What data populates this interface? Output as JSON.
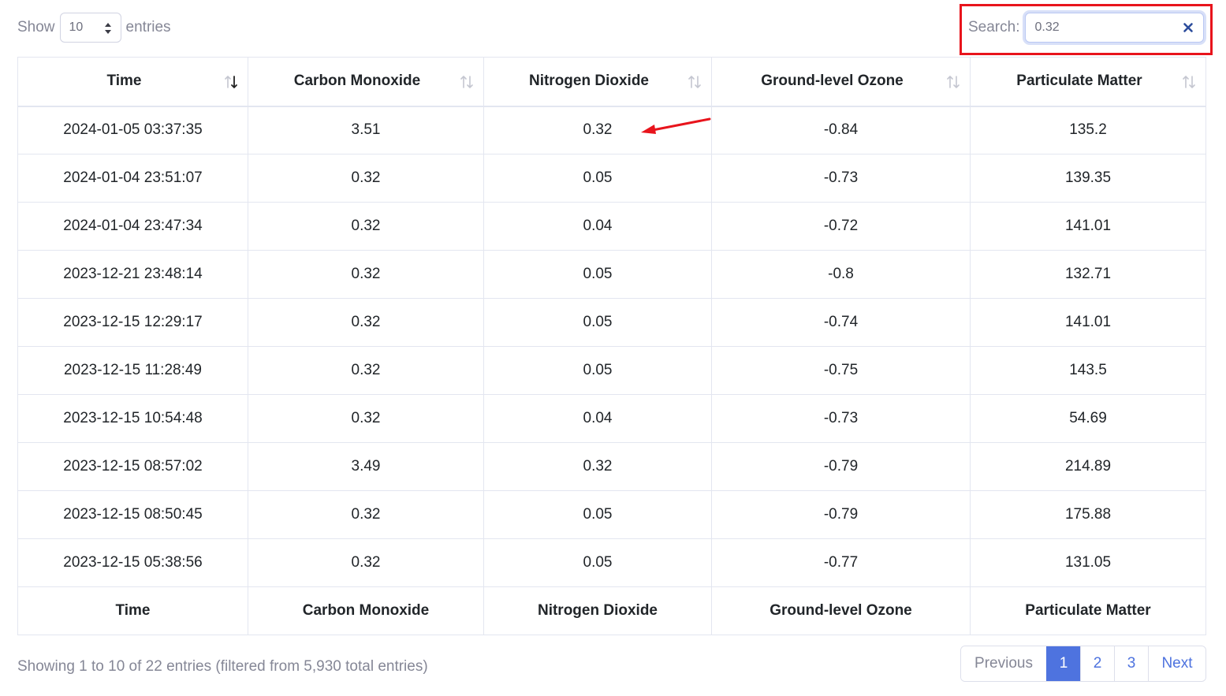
{
  "length_control": {
    "show_label": "Show",
    "selected": "10",
    "entries_label": "entries"
  },
  "search": {
    "label": "Search:",
    "value": "0.32"
  },
  "table": {
    "columns": [
      "Time",
      "Carbon Monoxide",
      "Nitrogen Dioxide",
      "Ground-level Ozone",
      "Particulate Matter"
    ],
    "rows": [
      [
        "2024-01-05 03:37:35",
        "3.51",
        "0.32",
        "-0.84",
        "135.2"
      ],
      [
        "2024-01-04 23:51:07",
        "0.32",
        "0.05",
        "-0.73",
        "139.35"
      ],
      [
        "2024-01-04 23:47:34",
        "0.32",
        "0.04",
        "-0.72",
        "141.01"
      ],
      [
        "2023-12-21 23:48:14",
        "0.32",
        "0.05",
        "-0.8",
        "132.71"
      ],
      [
        "2023-12-15 12:29:17",
        "0.32",
        "0.05",
        "-0.74",
        "141.01"
      ],
      [
        "2023-12-15 11:28:49",
        "0.32",
        "0.05",
        "-0.75",
        "143.5"
      ],
      [
        "2023-12-15 10:54:48",
        "0.32",
        "0.04",
        "-0.73",
        "54.69"
      ],
      [
        "2023-12-15 08:57:02",
        "3.49",
        "0.32",
        "-0.79",
        "214.89"
      ],
      [
        "2023-12-15 08:50:45",
        "0.32",
        "0.05",
        "-0.79",
        "175.88"
      ],
      [
        "2023-12-15 05:38:56",
        "0.32",
        "0.05",
        "-0.77",
        "131.05"
      ]
    ],
    "sorted_column": "Time",
    "sort_direction": "descending"
  },
  "info": "Showing 1 to 10 of 22 entries (filtered from 5,930 total entries)",
  "pagination": {
    "previous": "Previous",
    "pages": [
      "1",
      "2",
      "3"
    ],
    "active_page": "1",
    "next": "Next"
  },
  "colors": {
    "accent": "#4e73df",
    "highlight": "#e8141c",
    "muted_text": "#858796",
    "border": "#e3e6f0"
  }
}
